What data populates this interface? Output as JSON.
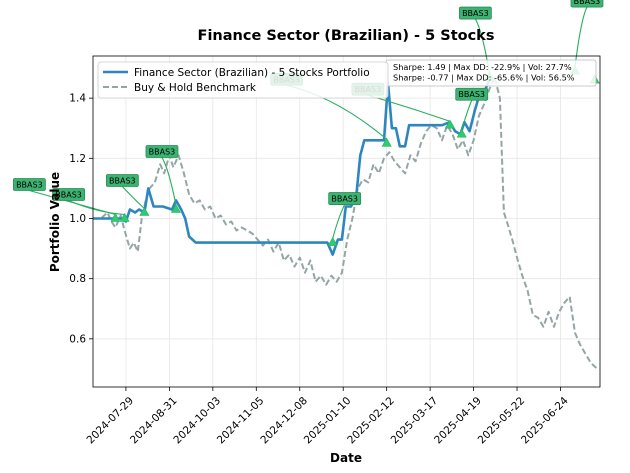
{
  "chart_data": {
    "type": "line",
    "title": "Finance Sector (Brazilian) - 5 Stocks",
    "xlabel": "Date",
    "ylabel": "Portfolio Value",
    "xlim": [
      "2024-07-04",
      "2025-07-24"
    ],
    "ylim": [
      0.44,
      1.54
    ],
    "grid": true,
    "legend_position": "top-left",
    "x_ticks": [
      "2024-07-29",
      "2024-08-31",
      "2024-10-03",
      "2024-11-05",
      "2024-12-08",
      "2025-01-10",
      "2025-02-12",
      "2025-03-17",
      "2025-04-19",
      "2025-05-22",
      "2025-06-24"
    ],
    "y_ticks": [
      0.6,
      0.8,
      1.0,
      1.2,
      1.4
    ],
    "series": [
      {
        "name": "Finance Sector (Brazilian) - 5 Stocks Portfolio",
        "color": "#2e86c1",
        "style": "solid",
        "points": [
          [
            "2024-07-04",
            1.0
          ],
          [
            "2024-07-25",
            1.0
          ],
          [
            "2024-07-29",
            0.99
          ],
          [
            "2024-08-01",
            1.03
          ],
          [
            "2024-08-05",
            1.02
          ],
          [
            "2024-08-08",
            1.03
          ],
          [
            "2024-08-12",
            1.02
          ],
          [
            "2024-08-15",
            1.1
          ],
          [
            "2024-08-19",
            1.04
          ],
          [
            "2024-08-26",
            1.04
          ],
          [
            "2024-09-02",
            1.03
          ],
          [
            "2024-09-05",
            1.06
          ],
          [
            "2024-09-09",
            1.03
          ],
          [
            "2024-09-12",
            1.0
          ],
          [
            "2024-09-15",
            0.94
          ],
          [
            "2024-09-20",
            0.92
          ],
          [
            "2024-10-01",
            0.92
          ],
          [
            "2024-11-01",
            0.92
          ],
          [
            "2024-12-01",
            0.92
          ],
          [
            "2024-12-20",
            0.92
          ],
          [
            "2024-12-29",
            0.92
          ],
          [
            "2025-01-02",
            0.88
          ],
          [
            "2025-01-06",
            0.93
          ],
          [
            "2025-01-09",
            0.93
          ],
          [
            "2025-01-12",
            1.04
          ],
          [
            "2025-01-16",
            1.04
          ],
          [
            "2025-01-20",
            1.08
          ],
          [
            "2025-01-23",
            1.21
          ],
          [
            "2025-01-26",
            1.26
          ],
          [
            "2025-02-10",
            1.26
          ],
          [
            "2025-02-13",
            1.45
          ],
          [
            "2025-02-16",
            1.3
          ],
          [
            "2025-02-19",
            1.3
          ],
          [
            "2025-02-22",
            1.24
          ],
          [
            "2025-02-26",
            1.24
          ],
          [
            "2025-03-01",
            1.31
          ],
          [
            "2025-03-26",
            1.31
          ],
          [
            "2025-04-01",
            1.32
          ],
          [
            "2025-04-05",
            1.29
          ],
          [
            "2025-04-09",
            1.28
          ],
          [
            "2025-04-12",
            1.32
          ],
          [
            "2025-04-16",
            1.29
          ],
          [
            "2025-04-20",
            1.36
          ],
          [
            "2025-04-24",
            1.42
          ],
          [
            "2025-04-28",
            1.43
          ],
          [
            "2025-05-01",
            1.46
          ]
        ]
      },
      {
        "name": "Buy & Hold Benchmark",
        "color": "#95a5a6",
        "style": "dashed",
        "points": [
          [
            "2024-07-04",
            1.0
          ],
          [
            "2024-07-10",
            1.0
          ],
          [
            "2024-07-15",
            1.02
          ],
          [
            "2024-07-18",
            0.99
          ],
          [
            "2024-07-21",
            0.97
          ],
          [
            "2024-07-25",
            1.01
          ],
          [
            "2024-07-28",
            0.96
          ],
          [
            "2024-08-01",
            0.9
          ],
          [
            "2024-08-04",
            0.92
          ],
          [
            "2024-08-07",
            0.89
          ],
          [
            "2024-08-10",
            1.0
          ],
          [
            "2024-08-13",
            1.06
          ],
          [
            "2024-08-16",
            1.1
          ],
          [
            "2024-08-20",
            1.12
          ],
          [
            "2024-08-24",
            1.18
          ],
          [
            "2024-08-27",
            1.15
          ],
          [
            "2024-08-31",
            1.21
          ],
          [
            "2024-09-03",
            1.17
          ],
          [
            "2024-09-07",
            1.21
          ],
          [
            "2024-09-11",
            1.15
          ],
          [
            "2024-09-15",
            1.08
          ],
          [
            "2024-09-19",
            1.05
          ],
          [
            "2024-09-23",
            1.06
          ],
          [
            "2024-09-27",
            1.03
          ],
          [
            "2024-10-01",
            1.04
          ],
          [
            "2024-10-05",
            1.0
          ],
          [
            "2024-10-09",
            1.01
          ],
          [
            "2024-10-13",
            0.98
          ],
          [
            "2024-10-17",
            0.99
          ],
          [
            "2024-10-21",
            0.96
          ],
          [
            "2024-10-25",
            0.97
          ],
          [
            "2024-10-29",
            0.96
          ],
          [
            "2024-11-02",
            0.95
          ],
          [
            "2024-11-06",
            0.93
          ],
          [
            "2024-11-10",
            0.91
          ],
          [
            "2024-11-14",
            0.93
          ],
          [
            "2024-11-18",
            0.89
          ],
          [
            "2024-11-22",
            0.92
          ],
          [
            "2024-11-26",
            0.86
          ],
          [
            "2024-11-30",
            0.88
          ],
          [
            "2024-12-04",
            0.84
          ],
          [
            "2024-12-08",
            0.87
          ],
          [
            "2024-12-12",
            0.82
          ],
          [
            "2024-12-16",
            0.86
          ],
          [
            "2024-12-20",
            0.79
          ],
          [
            "2024-12-24",
            0.81
          ],
          [
            "2024-12-28",
            0.78
          ],
          [
            "2025-01-01",
            0.81
          ],
          [
            "2025-01-05",
            0.79
          ],
          [
            "2025-01-09",
            0.82
          ],
          [
            "2025-01-13",
            0.93
          ],
          [
            "2025-01-17",
            1.0
          ],
          [
            "2025-01-21",
            1.1
          ],
          [
            "2025-01-25",
            1.13
          ],
          [
            "2025-01-29",
            1.12
          ],
          [
            "2025-02-02",
            1.18
          ],
          [
            "2025-02-06",
            1.15
          ],
          [
            "2025-02-10",
            1.2
          ],
          [
            "2025-02-14",
            1.22
          ],
          [
            "2025-02-18",
            1.19
          ],
          [
            "2025-02-22",
            1.17
          ],
          [
            "2025-02-26",
            1.15
          ],
          [
            "2025-03-02",
            1.21
          ],
          [
            "2025-03-06",
            1.19
          ],
          [
            "2025-03-10",
            1.25
          ],
          [
            "2025-03-14",
            1.29
          ],
          [
            "2025-03-18",
            1.31
          ],
          [
            "2025-03-22",
            1.3
          ],
          [
            "2025-03-26",
            1.26
          ],
          [
            "2025-03-30",
            1.31
          ],
          [
            "2025-04-03",
            1.28
          ],
          [
            "2025-04-07",
            1.23
          ],
          [
            "2025-04-11",
            1.26
          ],
          [
            "2025-04-15",
            1.21
          ],
          [
            "2025-04-19",
            1.26
          ],
          [
            "2025-04-23",
            1.34
          ],
          [
            "2025-04-27",
            1.38
          ],
          [
            "2025-05-01",
            1.43
          ],
          [
            "2025-05-05",
            1.47
          ],
          [
            "2025-05-09",
            1.4
          ],
          [
            "2025-05-12",
            1.02
          ],
          [
            "2025-05-15",
            0.98
          ],
          [
            "2025-05-19",
            0.92
          ],
          [
            "2025-05-22",
            0.87
          ],
          [
            "2025-05-26",
            0.81
          ],
          [
            "2025-05-30",
            0.76
          ],
          [
            "2025-06-03",
            0.68
          ],
          [
            "2025-06-07",
            0.67
          ],
          [
            "2025-06-11",
            0.64
          ],
          [
            "2025-06-15",
            0.69
          ],
          [
            "2025-06-19",
            0.64
          ],
          [
            "2025-06-23",
            0.69
          ],
          [
            "2025-06-27",
            0.72
          ],
          [
            "2025-07-01",
            0.74
          ],
          [
            "2025-07-05",
            0.62
          ],
          [
            "2025-07-09",
            0.58
          ],
          [
            "2025-07-13",
            0.55
          ],
          [
            "2025-07-17",
            0.52
          ],
          [
            "2025-07-22",
            0.5
          ]
        ]
      }
    ],
    "signals": [
      {
        "label": "BBAS3",
        "date": "2024-07-21",
        "value": 1.0
      },
      {
        "label": "BBAS3",
        "date": "2024-07-28",
        "value": 1.0
      },
      {
        "label": "BBAS3",
        "date": "2024-08-12",
        "value": 1.02
      },
      {
        "label": "BBAS3",
        "date": "2024-09-05",
        "value": 1.03
      },
      {
        "label": "BBAS3",
        "date": "2025-01-02",
        "value": 0.92
      },
      {
        "label": "BBAS3",
        "date": "2025-02-12",
        "value": 1.25
      },
      {
        "label": "BBAS3",
        "date": "2025-04-01",
        "value": 1.31
      },
      {
        "label": "BBAS3",
        "date": "2025-04-10",
        "value": 1.28
      },
      {
        "label": "BBAS3",
        "date": "2025-05-01",
        "value": 1.47
      },
      {
        "label": "BBAS3",
        "date": "2025-07-05",
        "value": 1.49
      },
      {
        "label": "BBAS3",
        "date": "2025-07-20",
        "value": 1.46
      }
    ],
    "stats_box": [
      "Sharpe: 1.49 | Max DD: -22.9% | Vol: 27.7%",
      "Sharpe: -0.77 | Max DD: -65.6% | Vol: 56.5%"
    ]
  }
}
